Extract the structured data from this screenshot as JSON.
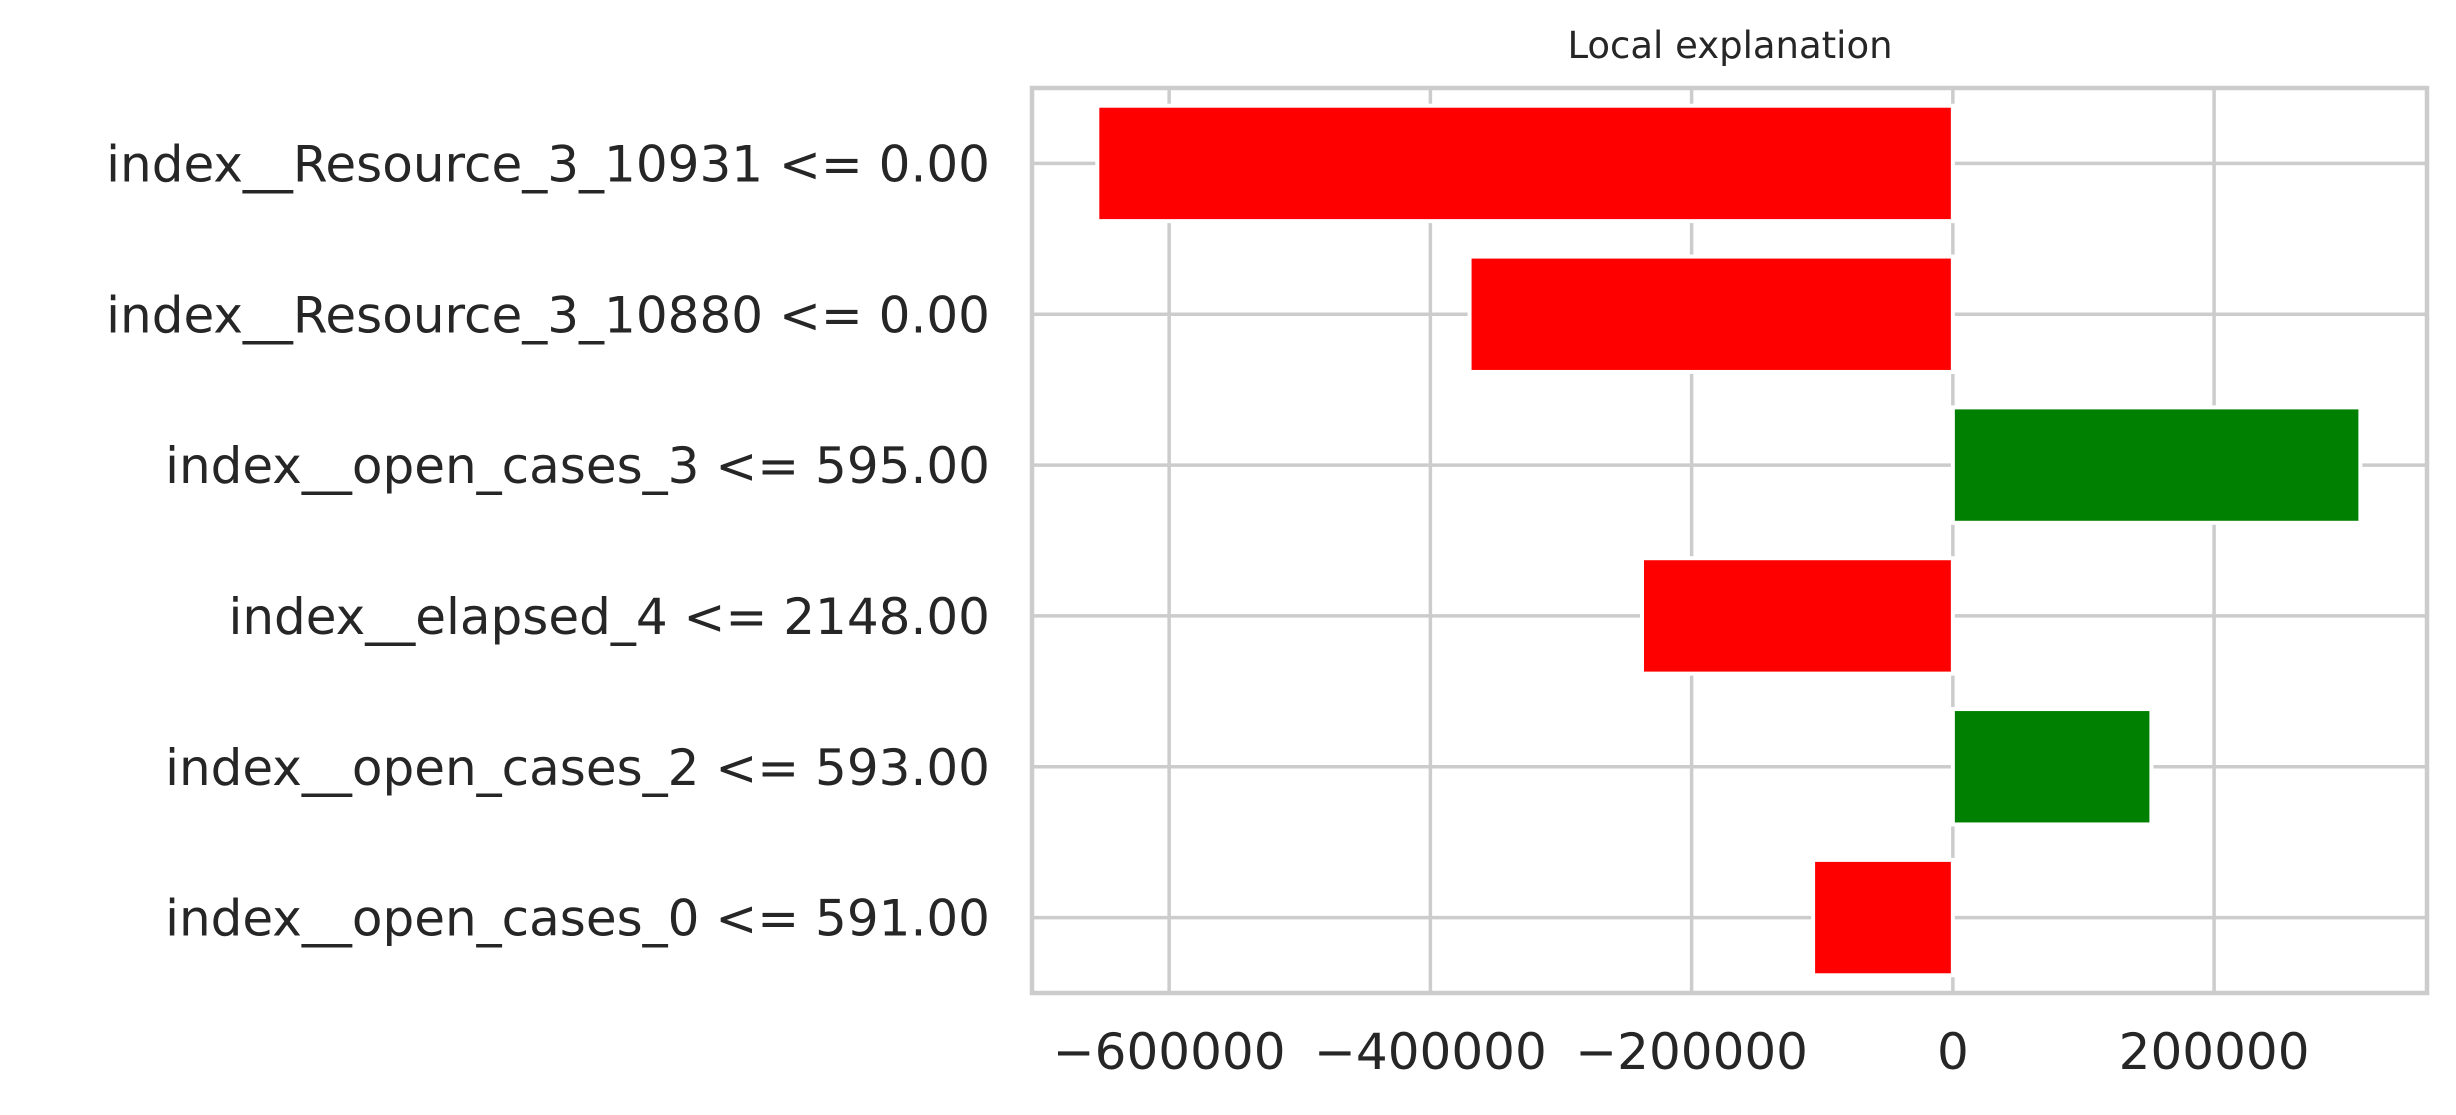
{
  "chart_data": {
    "type": "bar",
    "orientation": "horizontal",
    "title": "Local explanation",
    "categories": [
      "index__Resource_3_10931 <= 0.00",
      "index__Resource_3_10880 <= 0.00",
      "index__open_cases_3 <= 595.00",
      "index__elapsed_4 <= 2148.00",
      "index__open_cases_2 <= 593.00",
      "index__open_cases_0 <= 591.00"
    ],
    "values": [
      -655000,
      -370000,
      312000,
      -238000,
      152000,
      -107000
    ],
    "xlim": [
      -705000,
      363000
    ],
    "xticks": [
      -600000,
      -400000,
      -200000,
      0,
      200000
    ],
    "xtick_labels": [
      "−600000",
      "−400000",
      "−200000",
      "0",
      "200000"
    ],
    "xlabel": "",
    "ylabel": "",
    "grid": true,
    "colors": {
      "positive": "#008000",
      "negative": "#ff0000",
      "grid": "#cccccc",
      "text": "#262626"
    }
  }
}
